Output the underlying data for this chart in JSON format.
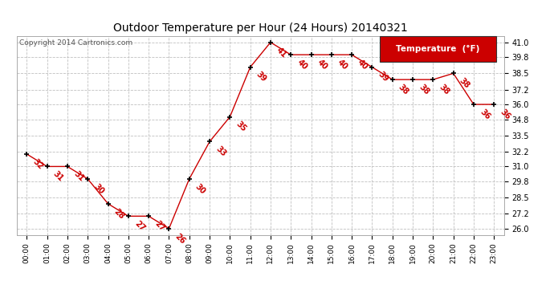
{
  "title": "Outdoor Temperature per Hour (24 Hours) 20140321",
  "copyright": "Copyright 2014 Cartronics.com",
  "legend_label": "Temperature  (°F)",
  "hours": [
    0,
    1,
    2,
    3,
    4,
    5,
    6,
    7,
    8,
    9,
    10,
    11,
    12,
    13,
    14,
    15,
    16,
    17,
    18,
    19,
    20,
    21,
    22,
    23
  ],
  "temps": [
    32,
    31,
    31,
    30,
    28,
    27,
    27,
    26,
    30,
    33,
    35,
    39,
    41,
    40,
    40,
    40,
    40,
    39,
    38,
    38,
    38,
    38.5,
    36,
    36
  ],
  "ylim": [
    25.5,
    41.5
  ],
  "yticks": [
    26.0,
    27.2,
    28.5,
    29.8,
    31.0,
    32.2,
    33.5,
    34.8,
    36.0,
    37.2,
    38.5,
    39.8,
    41.0
  ],
  "line_color": "#cc0000",
  "marker_color": "#000000",
  "label_color": "#cc0000",
  "bg_color": "#ffffff",
  "grid_color": "#c0c0c0",
  "title_color": "#000000",
  "copyright_color": "#555555",
  "legend_bg": "#cc0000",
  "legend_fg": "#ffffff"
}
